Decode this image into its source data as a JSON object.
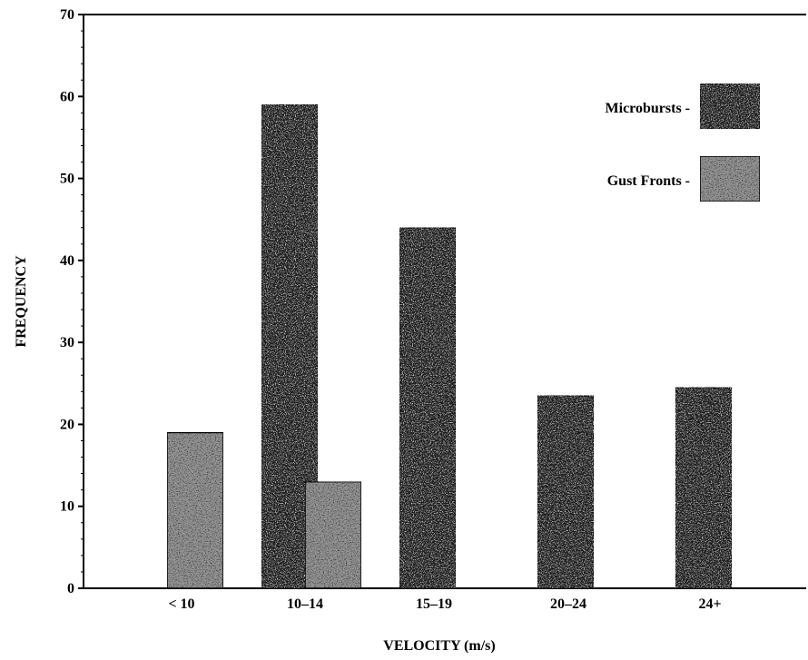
{
  "chart_data": {
    "type": "bar",
    "title": "",
    "xlabel": "VELOCITY (m/s)",
    "ylabel": "FREQUENCY",
    "ylim": [
      0,
      70
    ],
    "yticks": [
      "0",
      "10",
      "20",
      "30",
      "40",
      "50",
      "60",
      "70"
    ],
    "categories": [
      "< 10",
      "10–14",
      "15–19",
      "20–24",
      "24+"
    ],
    "series": [
      {
        "name": "Microbursts -",
        "values": [
          0,
          59,
          44,
          23.5,
          24.5
        ],
        "color": "#1a1a1a"
      },
      {
        "name": "Gust Fronts -",
        "values": [
          19,
          13,
          0,
          0,
          0
        ],
        "color": "#9a9a9a"
      }
    ],
    "legend_position": "top-right",
    "grid": false
  }
}
